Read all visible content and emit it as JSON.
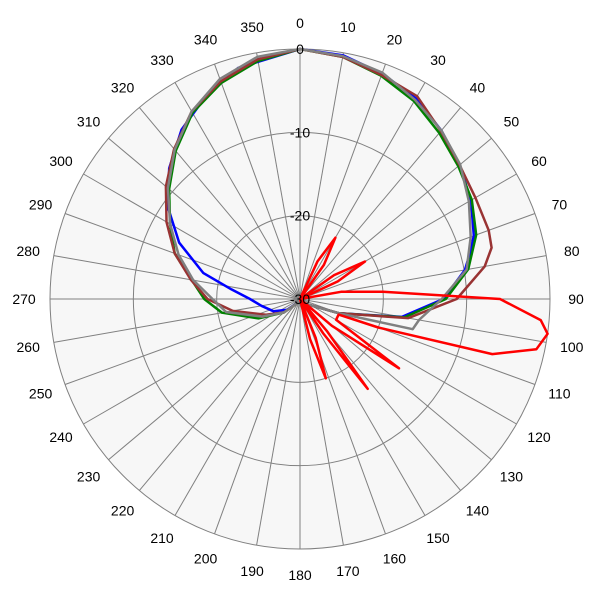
{
  "chart_data": {
    "type": "polar-line",
    "angular_unit": "degrees",
    "angular_direction": "clockwise",
    "angular_zero": "top",
    "angular_ticks": [
      0,
      10,
      20,
      30,
      40,
      50,
      60,
      70,
      80,
      90,
      100,
      110,
      120,
      130,
      140,
      150,
      160,
      170,
      180,
      190,
      200,
      210,
      220,
      230,
      240,
      250,
      260,
      270,
      280,
      290,
      300,
      310,
      320,
      330,
      340,
      350
    ],
    "radial_ticks": [
      0,
      -10,
      -20,
      -30
    ],
    "radial_range": [
      -30,
      0
    ],
    "grid": true,
    "series": [
      {
        "color": "#0000ff",
        "points": [
          [
            0,
            0
          ],
          [
            10,
            -0.3
          ],
          [
            20,
            -1.2
          ],
          [
            30,
            -2.2
          ],
          [
            40,
            -3.6
          ],
          [
            50,
            -5
          ],
          [
            60,
            -6.3
          ],
          [
            70,
            -7.8
          ],
          [
            75,
            -8.9
          ],
          [
            80,
            -9.9
          ],
          [
            90,
            -12.8
          ],
          [
            100,
            -17.6
          ],
          [
            110,
            -25
          ],
          [
            120,
            -28.5
          ],
          [
            150,
            -29.5
          ],
          [
            180,
            -30
          ],
          [
            210,
            -29.5
          ],
          [
            230,
            -28
          ],
          [
            245,
            -26.5
          ],
          [
            260,
            -25.3
          ],
          [
            270,
            -24
          ],
          [
            278,
            -21.7
          ],
          [
            285,
            -18
          ],
          [
            295,
            -14
          ],
          [
            305,
            -10.6
          ],
          [
            315,
            -7.8
          ],
          [
            325,
            -5.2
          ],
          [
            335,
            -3.2
          ],
          [
            345,
            -1.3
          ],
          [
            360,
            0
          ]
        ]
      },
      {
        "color": "#008000",
        "points": [
          [
            0,
            0
          ],
          [
            10,
            -0.5
          ],
          [
            20,
            -1.5
          ],
          [
            30,
            -2.6
          ],
          [
            40,
            -4
          ],
          [
            50,
            -5.2
          ],
          [
            60,
            -6.2
          ],
          [
            70,
            -7.5
          ],
          [
            80,
            -9.5
          ],
          [
            90,
            -12.5
          ],
          [
            100,
            -17.3
          ],
          [
            110,
            -25
          ],
          [
            120,
            -28.5
          ],
          [
            150,
            -29.5
          ],
          [
            180,
            -30
          ],
          [
            210,
            -29.5
          ],
          [
            230,
            -27.5
          ],
          [
            245,
            -24.5
          ],
          [
            260,
            -20.5
          ],
          [
            270,
            -18.5
          ],
          [
            280,
            -16.8
          ],
          [
            290,
            -14
          ],
          [
            300,
            -12
          ],
          [
            310,
            -9.5
          ],
          [
            320,
            -6.8
          ],
          [
            330,
            -4.2
          ],
          [
            340,
            -2.4
          ],
          [
            350,
            -1
          ],
          [
            360,
            0
          ]
        ]
      },
      {
        "color": "#993333",
        "points": [
          [
            0,
            0
          ],
          [
            10,
            -0.5
          ],
          [
            20,
            -1.4
          ],
          [
            30,
            -1.9
          ],
          [
            40,
            -3.7
          ],
          [
            50,
            -5
          ],
          [
            60,
            -5.7
          ],
          [
            70,
            -5.9
          ],
          [
            75,
            -6.2
          ],
          [
            80,
            -7.5
          ],
          [
            90,
            -11.2
          ],
          [
            100,
            -16.8
          ],
          [
            110,
            -25
          ],
          [
            120,
            -28.5
          ],
          [
            150,
            -29.5
          ],
          [
            180,
            -30
          ],
          [
            210,
            -29.5
          ],
          [
            230,
            -27.5
          ],
          [
            245,
            -25.5
          ],
          [
            260,
            -21.8
          ],
          [
            270,
            -18.9
          ],
          [
            280,
            -16.7
          ],
          [
            290,
            -14
          ],
          [
            300,
            -11.5
          ],
          [
            310,
            -9
          ],
          [
            320,
            -6.5
          ],
          [
            330,
            -4
          ],
          [
            340,
            -2.2
          ],
          [
            350,
            -0.8
          ],
          [
            360,
            0
          ]
        ]
      },
      {
        "color": "#808080",
        "points": [
          [
            0,
            0
          ],
          [
            10,
            -0.4
          ],
          [
            20,
            -1.1
          ],
          [
            30,
            -2.4
          ],
          [
            40,
            -3.6
          ],
          [
            50,
            -4.9
          ],
          [
            60,
            -6.6
          ],
          [
            70,
            -8.2
          ],
          [
            80,
            -9.7
          ],
          [
            90,
            -13
          ],
          [
            100,
            -15.5
          ],
          [
            105,
            -16
          ],
          [
            110,
            -25
          ],
          [
            120,
            -28.5
          ],
          [
            150,
            -29.5
          ],
          [
            180,
            -30
          ],
          [
            210,
            -29.5
          ],
          [
            230,
            -27.5
          ],
          [
            245,
            -25
          ],
          [
            260,
            -21
          ],
          [
            270,
            -19.5
          ],
          [
            280,
            -17
          ],
          [
            290,
            -14.5
          ],
          [
            300,
            -12
          ],
          [
            310,
            -9.3
          ],
          [
            320,
            -6.6
          ],
          [
            330,
            -4
          ],
          [
            340,
            -1.9
          ],
          [
            350,
            -0.5
          ],
          [
            360,
            0
          ]
        ]
      },
      {
        "color": "#ff0000",
        "points": [
          [
            0,
            -30
          ],
          [
            20,
            -30
          ],
          [
            25,
            -25
          ],
          [
            30,
            -21.5
          ],
          [
            35,
            -25
          ],
          [
            40,
            -30
          ],
          [
            50,
            -30
          ],
          [
            55,
            -25
          ],
          [
            60,
            -21
          ],
          [
            65,
            -25
          ],
          [
            70,
            -30
          ],
          [
            80,
            -25
          ],
          [
            85,
            -20
          ],
          [
            90,
            -6
          ],
          [
            95,
            -1
          ],
          [
            98,
            0
          ],
          [
            102,
            -1
          ],
          [
            106,
            -6
          ],
          [
            110,
            -20
          ],
          [
            112,
            -25
          ],
          [
            120,
            -25
          ],
          [
            125,
            -15.5
          ],
          [
            130,
            -25
          ],
          [
            135,
            -30
          ],
          [
            140,
            -25
          ],
          [
            143,
            -16.5
          ],
          [
            146,
            -25
          ],
          [
            150,
            -30
          ],
          [
            158,
            -25
          ],
          [
            162,
            -20
          ],
          [
            166,
            -25
          ],
          [
            170,
            -30
          ],
          [
            360,
            -30
          ]
        ]
      }
    ]
  }
}
